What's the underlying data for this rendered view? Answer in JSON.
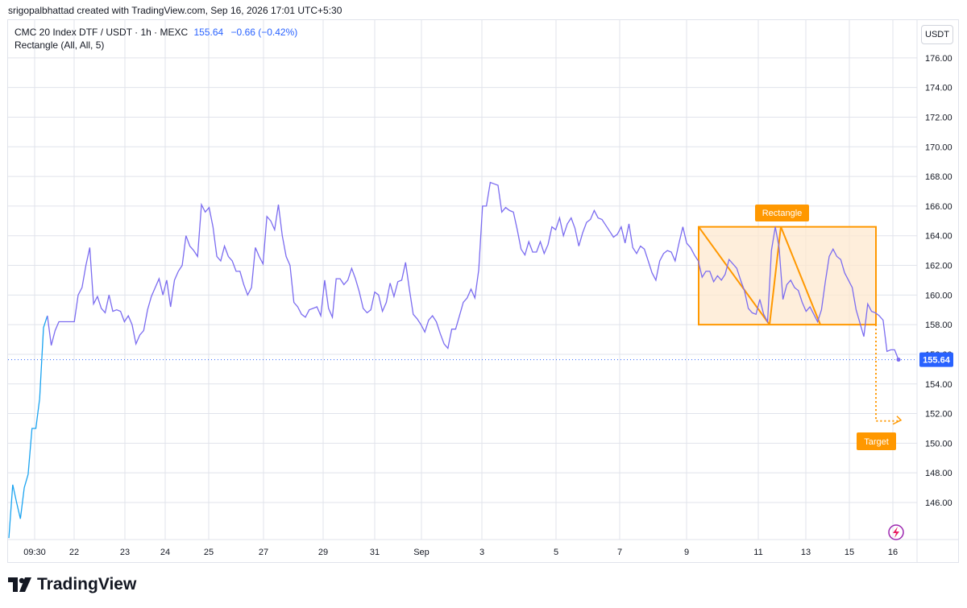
{
  "header": {
    "credit": "srigopalbhattad created with TradingView.com, Sep 16, 2026 17:01 UTC+5:30"
  },
  "legend": {
    "symbol": "CMC 20 Index DTF / USDT · 1h · MEXC",
    "price": "155.64",
    "change": "−0.66 (−0.42%)",
    "indicator": "Rectangle (All, All, 5)"
  },
  "currency_button": "USDT",
  "colors": {
    "line_blue": "#1aa3f0",
    "line_purple": "#7b6cf0",
    "pattern_orange": "#ff9800",
    "pattern_fill": "#fde8cf",
    "last_price_bg": "#2962ff",
    "grid": "#e0e3eb",
    "lightning_icon": "#9c27b0"
  },
  "chart_data": {
    "type": "line",
    "x_tick_labels": [
      "09:30",
      "22",
      "23",
      "24",
      "25",
      "27",
      "29",
      "31",
      "Sep",
      "3",
      "5",
      "7",
      "9",
      "11",
      "13",
      "15",
      "16"
    ],
    "y_tick_labels": [
      "146.00",
      "148.00",
      "150.00",
      "152.00",
      "154.00",
      "156.00",
      "158.00",
      "160.00",
      "162.00",
      "164.00",
      "166.00",
      "168.00",
      "170.00",
      "172.00",
      "174.00",
      "176.00"
    ],
    "ylim": [
      143.5,
      178.6
    ],
    "last_price_label": "155.64",
    "values": [
      143.6,
      147.2,
      146.0,
      144.9,
      147.0,
      147.9,
      151.0,
      151.0,
      153.0,
      157.8,
      158.6,
      156.6,
      157.6,
      158.2,
      158.2,
      158.2,
      158.2,
      158.2,
      160.0,
      160.5,
      162.0,
      163.2,
      159.4,
      159.9,
      159.1,
      158.8,
      160.0,
      158.9,
      159.0,
      158.9,
      158.2,
      158.6,
      158.0,
      156.7,
      157.3,
      157.6,
      159.0,
      159.9,
      160.5,
      161.1,
      160.0,
      161.0,
      159.2,
      161.0,
      161.6,
      162.0,
      164.0,
      163.3,
      163.0,
      162.6,
      166.1,
      165.6,
      165.9,
      164.6,
      162.6,
      162.3,
      163.3,
      162.6,
      162.3,
      161.6,
      161.6,
      160.7,
      160.0,
      160.5,
      163.2,
      162.6,
      162.1,
      165.3,
      165.0,
      164.4,
      166.1,
      164.0,
      162.6,
      162.0,
      159.5,
      159.2,
      158.7,
      158.5,
      159.0,
      159.1,
      159.2,
      158.6,
      161.0,
      159.1,
      158.5,
      161.1,
      161.1,
      160.7,
      161.0,
      161.8,
      161.1,
      160.2,
      159.1,
      158.8,
      159.0,
      160.2,
      160.0,
      158.9,
      159.5,
      160.8,
      159.9,
      160.9,
      161.0,
      162.2,
      160.4,
      158.7,
      158.4,
      158.0,
      157.5,
      158.3,
      158.6,
      158.2,
      157.4,
      156.7,
      156.4,
      157.7,
      157.7,
      158.6,
      159.5,
      159.8,
      160.4,
      159.8,
      161.7,
      166.0,
      166.0,
      167.6,
      167.5,
      167.4,
      165.6,
      165.9,
      165.7,
      165.6,
      164.4,
      163.1,
      162.7,
      163.6,
      162.9,
      162.9,
      163.6,
      162.8,
      163.4,
      164.6,
      164.4,
      165.2,
      164.0,
      164.8,
      165.2,
      164.5,
      163.3,
      164.2,
      164.9,
      165.1,
      165.7,
      165.2,
      165.1,
      164.7,
      164.3,
      163.9,
      164.1,
      164.6,
      163.5,
      164.8,
      163.2,
      162.8,
      163.3,
      163.1,
      162.3,
      161.5,
      161.0,
      162.3,
      162.8,
      163.0,
      162.9,
      162.3,
      163.5,
      164.6,
      163.5,
      163.2,
      162.7,
      162.3,
      161.2,
      161.6,
      161.6,
      160.9,
      161.3,
      161.0,
      161.4,
      162.4,
      162.1,
      161.8,
      161.0,
      160.3,
      159.1,
      158.8,
      158.7,
      159.7,
      158.7,
      158.2,
      163.0,
      164.6,
      163.2,
      159.7,
      160.7,
      161.0,
      160.5,
      160.3,
      159.5,
      158.9,
      159.2,
      158.7,
      158.2,
      159.0,
      160.9,
      162.6,
      163.1,
      162.6,
      162.4,
      161.5,
      161.0,
      160.5,
      159.0,
      158.1,
      157.2,
      159.4,
      158.9,
      158.8,
      158.6,
      158.3,
      156.2,
      156.3,
      156.3,
      155.64
    ],
    "blue_segment_end_index": 10,
    "pattern": {
      "name": "Rectangle",
      "top": 164.6,
      "bottom": 158.0,
      "target_label": "Target",
      "target_value": 151.5
    }
  }
}
